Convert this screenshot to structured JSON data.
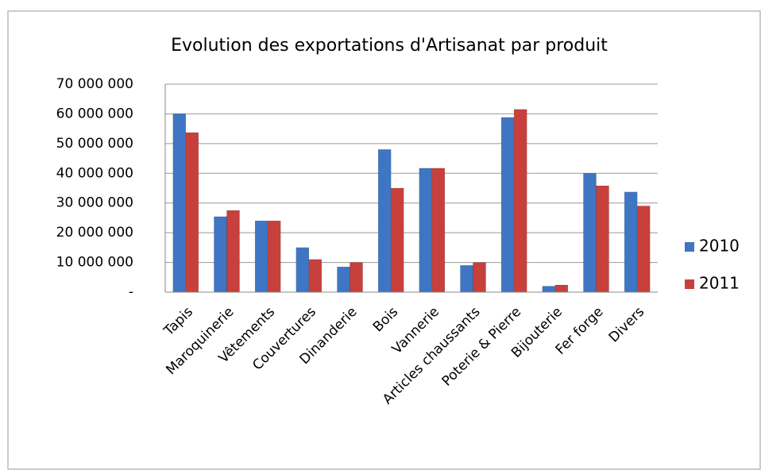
{
  "chart_data": {
    "type": "bar",
    "title": "Evolution des exportations d'Artisanat par produit",
    "categories": [
      "Tapis",
      "Maroquinerie",
      "Vêtements",
      "Couvertures",
      "Dinanderie",
      "Bois",
      "Vannerie",
      "Articles chaussants",
      "Poterie & Pierre",
      "Bijouterie",
      "Fer forge",
      "Divers"
    ],
    "series": [
      {
        "name": "2010",
        "color": "#3f76c4",
        "values": [
          60000000,
          25400000,
          24000000,
          15000000,
          8500000,
          48000000,
          41700000,
          9000000,
          58800000,
          2000000,
          40000000,
          33700000
        ]
      },
      {
        "name": "2011",
        "color": "#c8403c",
        "values": [
          53700000,
          27500000,
          24000000,
          11000000,
          10000000,
          35000000,
          41700000,
          10000000,
          61500000,
          2400000,
          35800000,
          29000000
        ]
      }
    ],
    "ylim": [
      0,
      70000000
    ],
    "yticks": [
      {
        "value": 0,
        "label": "-"
      },
      {
        "value": 10000000,
        "label": "10 000 000"
      },
      {
        "value": 20000000,
        "label": "20 000 000"
      },
      {
        "value": 30000000,
        "label": "30 000 000"
      },
      {
        "value": 40000000,
        "label": "40 000 000"
      },
      {
        "value": 50000000,
        "label": "50 000 000"
      },
      {
        "value": 60000000,
        "label": "60 000 000"
      },
      {
        "value": 70000000,
        "label": "70 000 000"
      }
    ],
    "grid": true,
    "legend": "right"
  }
}
